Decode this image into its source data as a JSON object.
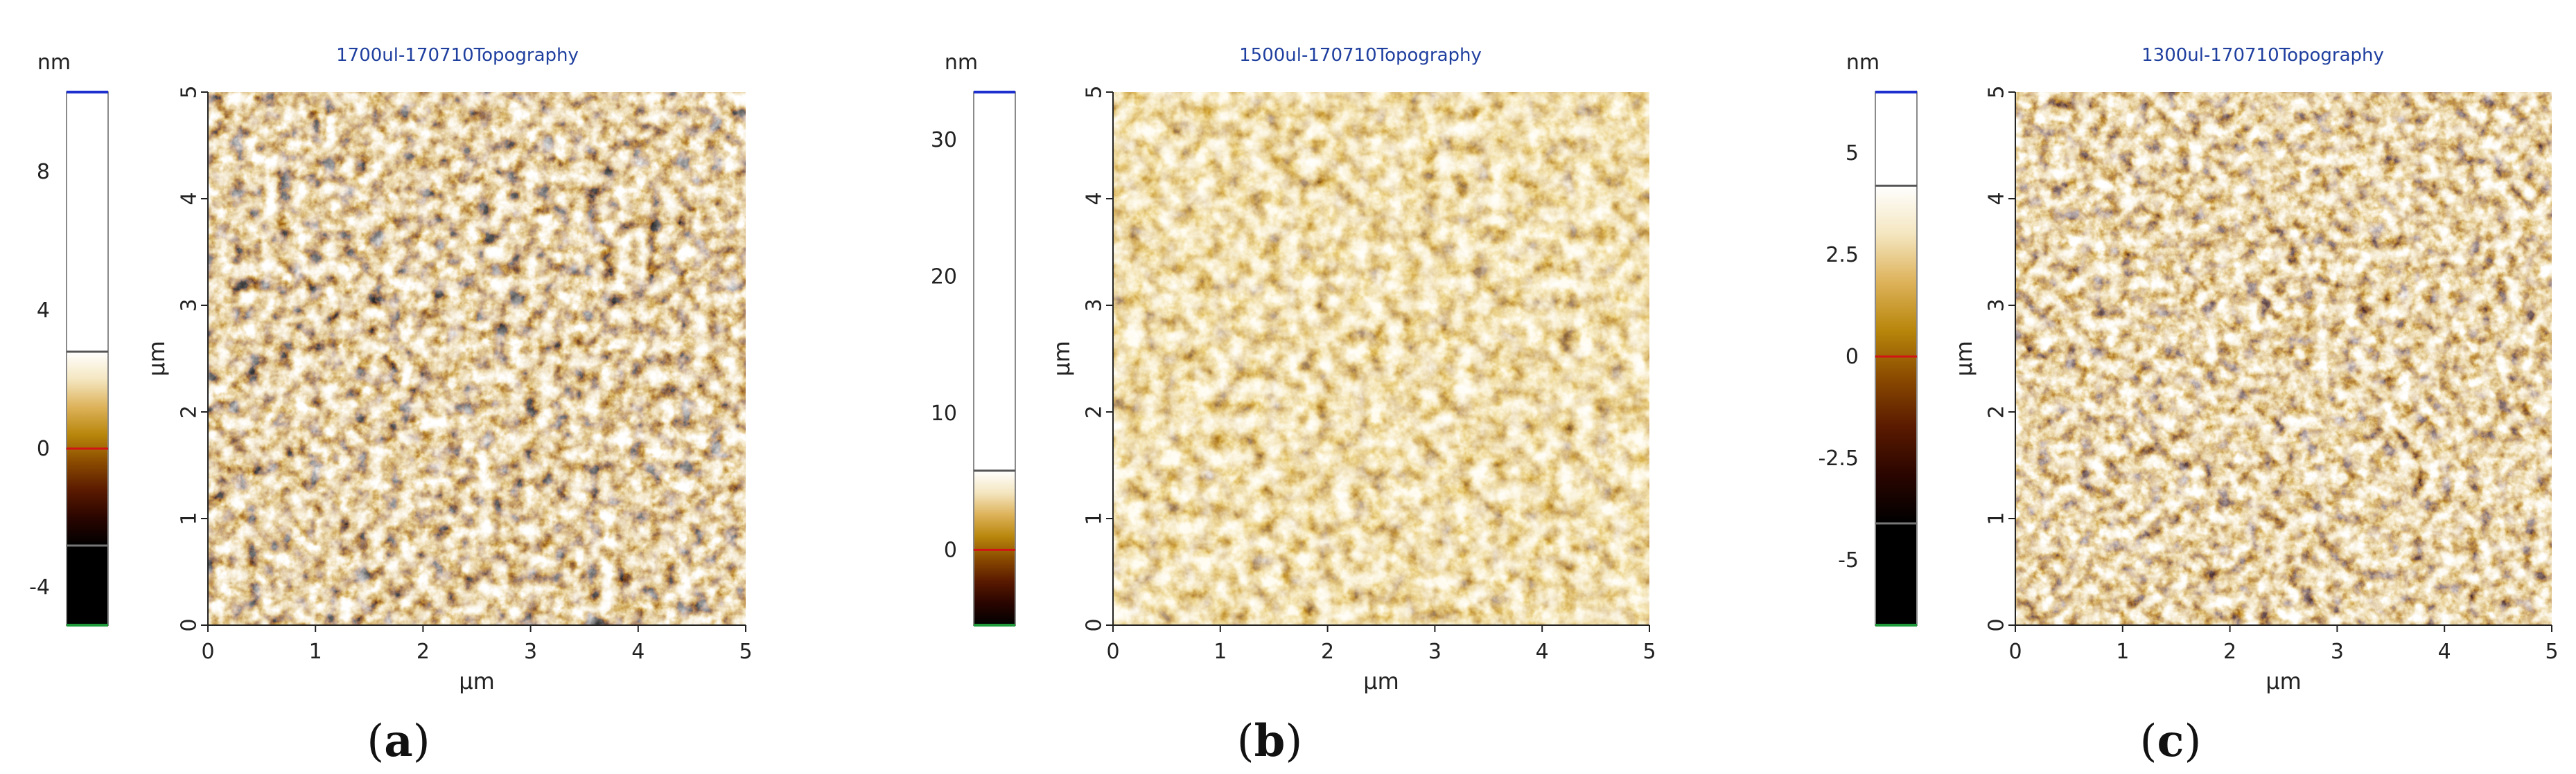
{
  "figure": {
    "colormap": [
      "#000000",
      "#2a0500",
      "#5a1a00",
      "#8a4a00",
      "#b8860b",
      "#ddb25a",
      "#f4e6c0",
      "#ffffff"
    ],
    "axis_color": "#222222",
    "title_color": "#1f3f9f"
  },
  "chart_data": [
    {
      "type": "heatmap",
      "title": "1700ul-170710Topography",
      "xlabel": "μm",
      "ylabel": "μm",
      "xlim": [
        0,
        5
      ],
      "ylim": [
        0,
        5
      ],
      "x_ticks": [
        "0",
        "1",
        "2",
        "3",
        "4",
        "5"
      ],
      "y_ticks": [
        "0",
        "1",
        "2",
        "3",
        "4",
        "5"
      ],
      "colorbar": {
        "unit": "nm",
        "range": [
          -5.1,
          10.3
        ],
        "ticks": [
          -4,
          0,
          4,
          8
        ],
        "tick_labels": [
          "-4",
          "0",
          "4",
          "8"
        ],
        "lower_marker": -2.8,
        "upper_marker": 2.8,
        "zero_marker": 0
      },
      "caption": "a"
    },
    {
      "type": "heatmap",
      "title": "1500ul-170710Topography",
      "xlabel": "μm",
      "ylabel": "μm",
      "xlim": [
        0,
        5
      ],
      "ylim": [
        0,
        5
      ],
      "x_ticks": [
        "0",
        "1",
        "2",
        "3",
        "4",
        "5"
      ],
      "y_ticks": [
        "0",
        "1",
        "2",
        "3",
        "4",
        "5"
      ],
      "colorbar": {
        "unit": "nm",
        "range": [
          -5.5,
          33.5
        ],
        "ticks": [
          0,
          10,
          20,
          30
        ],
        "tick_labels": [
          "0",
          "10",
          "20",
          "30"
        ],
        "lower_marker": null,
        "upper_marker": 5.8,
        "zero_marker": 0
      },
      "caption": "b"
    },
    {
      "type": "heatmap",
      "title": "1300ul-170710Topography",
      "xlabel": "μm",
      "ylabel": "μm",
      "xlim": [
        0,
        5
      ],
      "ylim": [
        0,
        5
      ],
      "x_ticks": [
        "0",
        "1",
        "2",
        "3",
        "4",
        "5"
      ],
      "y_ticks": [
        "0",
        "1",
        "2",
        "3",
        "4",
        "5"
      ],
      "colorbar": {
        "unit": "nm",
        "range": [
          -6.6,
          6.5
        ],
        "ticks": [
          -5,
          -2.5,
          0,
          2.5,
          5
        ],
        "tick_labels": [
          "-5",
          "-2.5",
          "0",
          "2.5",
          "5"
        ],
        "lower_marker": -4.1,
        "upper_marker": 4.2,
        "zero_marker": 0
      },
      "caption": "c"
    }
  ]
}
